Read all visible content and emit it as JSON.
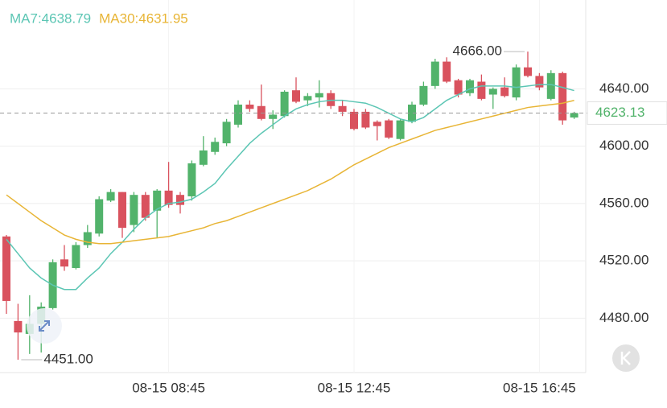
{
  "chart_data": {
    "type": "candlestick",
    "categories": [
      null,
      null,
      null,
      null,
      null,
      null,
      null,
      null,
      null,
      null,
      null,
      null,
      null,
      null,
      "08-15 08:45",
      null,
      null,
      null,
      null,
      null,
      null,
      null,
      null,
      null,
      null,
      null,
      null,
      null,
      null,
      null,
      "08-15 12:45",
      null,
      null,
      null,
      null,
      null,
      null,
      null,
      null,
      null,
      null,
      null,
      null,
      null,
      null,
      null,
      "08-15 16:45",
      null,
      null,
      null
    ],
    "open": [
      4537,
      4478,
      4469,
      4476,
      4487,
      4521,
      4515,
      4531,
      4539,
      4562,
      4568,
      4545,
      4566,
      4555,
      4569,
      4566,
      4565,
      4587,
      4596,
      4602,
      4615,
      4629,
      4628,
      4619,
      4621,
      4639,
      4632,
      4634,
      4637,
      4628,
      4624,
      4624,
      4617,
      4618,
      4605,
      4617,
      4629,
      4642,
      4659,
      4646,
      4637,
      4645,
      4636,
      4641,
      4634,
      4655,
      4649,
      4633,
      4651,
      4620
    ],
    "high": [
      4538,
      4490,
      4496,
      4491,
      4521,
      4531,
      4533,
      4545,
      4565,
      4570,
      4568,
      4568,
      4568,
      4570,
      4589,
      4568,
      4590,
      4607,
      4606,
      4619,
      4632,
      4632,
      4643,
      4625,
      4639,
      4648,
      4637,
      4646,
      4639,
      4632,
      4626,
      4626,
      4618,
      4619,
      4619,
      4631,
      4645,
      4661,
      4662,
      4647,
      4647,
      4650,
      4641,
      4648,
      4657,
      4666,
      4651,
      4653,
      4652,
      4624
    ],
    "low": [
      4483,
      4451,
      4455,
      4456,
      4486,
      4513,
      4514,
      4529,
      4537,
      4561,
      4536,
      4540,
      4548,
      4536,
      4557,
      4553,
      4562,
      4586,
      4594,
      4600,
      4613,
      4624,
      4618,
      4612,
      4620,
      4630,
      4628,
      4627,
      4626,
      4621,
      4611,
      4612,
      4604,
      4605,
      4604,
      4616,
      4628,
      4640,
      4644,
      4634,
      4635,
      4632,
      4626,
      4634,
      4632,
      4648,
      4639,
      4632,
      4615,
      4619
    ],
    "close": [
      4492,
      4470,
      4476,
      4488,
      4519,
      4516,
      4531,
      4540,
      4563,
      4568,
      4543,
      4566,
      4550,
      4569,
      4559,
      4559,
      4588,
      4597,
      4603,
      4617,
      4629,
      4626,
      4619,
      4622,
      4638,
      4631,
      4635,
      4637,
      4628,
      4624,
      4612,
      4613,
      4614,
      4606,
      4618,
      4629,
      4642,
      4659,
      4645,
      4636,
      4646,
      4633,
      4640,
      4635,
      4655,
      4649,
      4641,
      4651,
      4618,
      4623.13
    ],
    "up_color": "#52b36b",
    "down_color": "#d9525e",
    "series": [
      {
        "name": "MA7:4638.79",
        "color": "#5cc6b4",
        "values": [
          4535,
          4525,
          4515,
          4508,
          4503,
          4500,
          4500,
          4508,
          4515,
          4525,
          4533,
          4542,
          4550,
          4556,
          4560,
          4561,
          4563,
          4568,
          4574,
          4584,
          4593,
          4602,
          4609,
          4615,
          4621,
          4626,
          4629,
          4631,
          4632,
          4632,
          4631,
          4630,
          4627,
          4623,
          4619,
          4617,
          4620,
          4626,
          4632,
          4636,
          4640,
          4642,
          4642,
          4642,
          4641,
          4642,
          4643,
          4643,
          4641,
          4638.79
        ]
      },
      {
        "name": "MA30:4631.95",
        "color": "#e8b536",
        "values": [
          4566,
          4560,
          4554,
          4548,
          4543,
          4538,
          4535,
          4533,
          4532,
          4532,
          4533,
          4534,
          4535,
          4536,
          4537,
          4539,
          4541,
          4543,
          4546,
          4548,
          4551,
          4554,
          4557,
          4560,
          4563,
          4566,
          4569,
          4573,
          4577,
          4582,
          4587,
          4591,
          4595,
          4599,
          4602,
          4605,
          4608,
          4611,
          4613,
          4615,
          4617,
          4619,
          4621,
          4623,
          4625,
          4627,
          4628,
          4629,
          4630,
          4631.95
        ]
      }
    ],
    "last_price": 4623.13,
    "max_label": {
      "value": 4666,
      "label": "4666.00"
    },
    "min_label": {
      "value": 4451,
      "label": "4451.00"
    },
    "ylim": [
      4442,
      4702
    ],
    "yticks": [
      {
        "value": 4480,
        "label": "4480.00"
      },
      {
        "value": 4520,
        "label": "4520.00"
      },
      {
        "value": 4560,
        "label": "4560.00"
      },
      {
        "value": 4600,
        "label": "4600.00"
      },
      {
        "value": 4640,
        "label": "4640.00"
      }
    ],
    "grid": true
  }
}
